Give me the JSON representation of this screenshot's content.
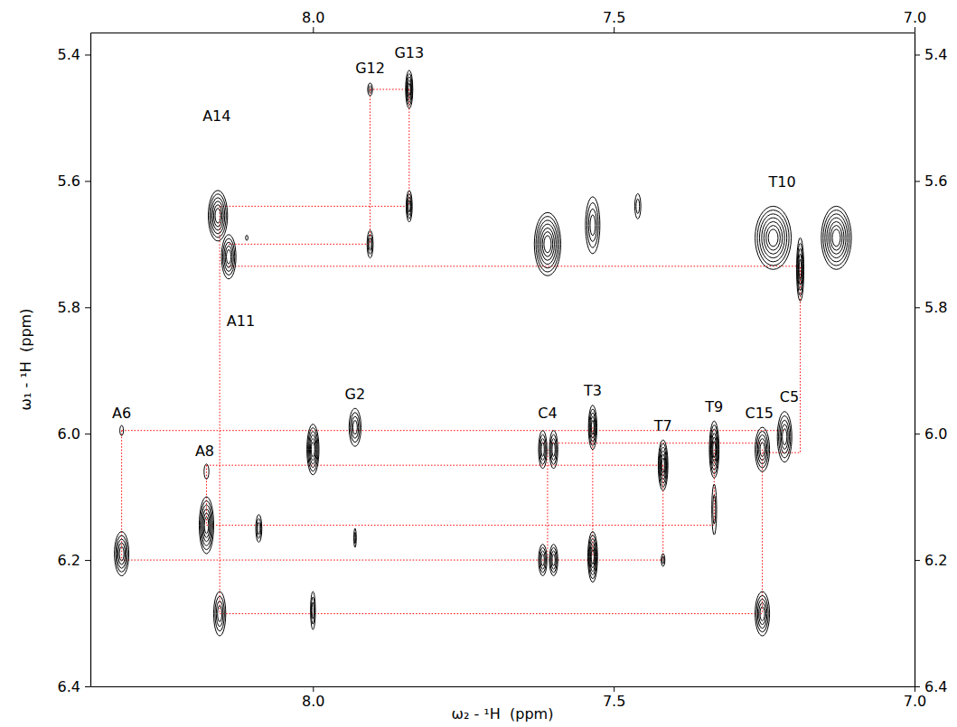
{
  "chart_data": {
    "type": "contour",
    "x_label": "ω₂ - ¹H  (ppm)",
    "y_label": "ω₁ - ¹H  (ppm)",
    "xlim": [
      8.37,
      7.0
    ],
    "ylim": [
      5.365,
      6.4
    ],
    "xticks": [
      {
        "value": 8,
        "label": "8.0"
      },
      7.5,
      {
        "value": 7,
        "label": "7.0"
      }
    ],
    "yticks": [
      5.4,
      5.6,
      5.8,
      {
        "value": 6,
        "label": "6.0"
      },
      6.2,
      6.4
    ],
    "color": "#000000",
    "peaks": [
      {
        "x": 8.318,
        "y": 6.19,
        "xw": 0.012,
        "yw": 0.035,
        "levels": 5
      },
      {
        "x": 8.318,
        "y": 5.995,
        "xw": 0.003,
        "yw": 0.008,
        "levels": 1
      },
      {
        "x": 8.177,
        "y": 6.145,
        "xw": 0.012,
        "yw": 0.045,
        "levels": 6
      },
      {
        "x": 8.177,
        "y": 6.06,
        "xw": 0.004,
        "yw": 0.012,
        "levels": 1
      },
      {
        "x": 8.158,
        "y": 5.655,
        "xw": 0.016,
        "yw": 0.04,
        "levels": 6
      },
      {
        "x": 8.14,
        "y": 5.72,
        "xw": 0.012,
        "yw": 0.035,
        "levels": 5
      },
      {
        "x": 8.155,
        "y": 6.285,
        "xw": 0.01,
        "yw": 0.035,
        "levels": 4
      },
      {
        "x": 8.09,
        "y": 6.15,
        "xw": 0.005,
        "yw": 0.022,
        "levels": 3
      },
      {
        "x": 8.11,
        "y": 5.69,
        "xw": 0.002,
        "yw": 0.004,
        "levels": 1
      },
      {
        "x": 8.0,
        "y": 6.025,
        "xw": 0.01,
        "yw": 0.04,
        "levels": 6
      },
      {
        "x": 8.0,
        "y": 6.28,
        "xw": 0.004,
        "yw": 0.03,
        "levels": 3
      },
      {
        "x": 7.93,
        "y": 5.99,
        "xw": 0.01,
        "yw": 0.03,
        "levels": 4
      },
      {
        "x": 7.93,
        "y": 6.165,
        "xw": 0.002,
        "yw": 0.015,
        "levels": 2
      },
      {
        "x": 7.905,
        "y": 5.455,
        "xw": 0.004,
        "yw": 0.01,
        "levels": 2
      },
      {
        "x": 7.905,
        "y": 5.7,
        "xw": 0.005,
        "yw": 0.022,
        "levels": 3
      },
      {
        "x": 7.84,
        "y": 5.455,
        "xw": 0.006,
        "yw": 0.03,
        "levels": 5
      },
      {
        "x": 7.84,
        "y": 5.64,
        "xw": 0.005,
        "yw": 0.025,
        "levels": 4
      },
      {
        "x": 7.618,
        "y": 6.025,
        "xw": 0.007,
        "yw": 0.03,
        "levels": 4
      },
      {
        "x": 7.6,
        "y": 6.025,
        "xw": 0.007,
        "yw": 0.03,
        "levels": 4
      },
      {
        "x": 7.618,
        "y": 6.2,
        "xw": 0.007,
        "yw": 0.025,
        "levels": 4
      },
      {
        "x": 7.6,
        "y": 6.2,
        "xw": 0.007,
        "yw": 0.025,
        "levels": 4
      },
      {
        "x": 7.61,
        "y": 5.7,
        "xw": 0.022,
        "yw": 0.05,
        "levels": 7
      },
      {
        "x": 7.535,
        "y": 5.67,
        "xw": 0.012,
        "yw": 0.045,
        "levels": 4
      },
      {
        "x": 7.46,
        "y": 5.64,
        "xw": 0.005,
        "yw": 0.02,
        "levels": 2
      },
      {
        "x": 7.535,
        "y": 5.99,
        "xw": 0.007,
        "yw": 0.035,
        "levels": 5
      },
      {
        "x": 7.535,
        "y": 6.195,
        "xw": 0.008,
        "yw": 0.04,
        "levels": 6
      },
      {
        "x": 7.418,
        "y": 6.05,
        "xw": 0.008,
        "yw": 0.04,
        "levels": 6
      },
      {
        "x": 7.418,
        "y": 6.2,
        "xw": 0.003,
        "yw": 0.01,
        "levels": 2
      },
      {
        "x": 7.333,
        "y": 6.025,
        "xw": 0.008,
        "yw": 0.045,
        "levels": 6
      },
      {
        "x": 7.333,
        "y": 6.12,
        "xw": 0.004,
        "yw": 0.04,
        "levels": 2
      },
      {
        "x": 7.253,
        "y": 6.025,
        "xw": 0.012,
        "yw": 0.035,
        "levels": 5
      },
      {
        "x": 7.253,
        "y": 6.285,
        "xw": 0.012,
        "yw": 0.035,
        "levels": 5
      },
      {
        "x": 7.216,
        "y": 6.005,
        "xw": 0.012,
        "yw": 0.04,
        "levels": 5
      },
      {
        "x": 7.235,
        "y": 5.69,
        "xw": 0.03,
        "yw": 0.05,
        "levels": 7
      },
      {
        "x": 7.19,
        "y": 5.74,
        "xw": 0.006,
        "yw": 0.05,
        "levels": 5
      },
      {
        "x": 7.13,
        "y": 5.69,
        "xw": 0.025,
        "yw": 0.05,
        "levels": 7
      }
    ],
    "connections": {
      "color": "#ff0000",
      "line_style": "dotted",
      "lines": [
        {
          "x": [
            7.905,
            7.84
          ],
          "y": [
            5.455,
            5.455
          ]
        },
        {
          "x": [
            7.905,
            7.905
          ],
          "y": [
            5.455,
            5.7
          ]
        },
        {
          "x": [
            7.84,
            7.84
          ],
          "y": [
            5.455,
            5.64
          ]
        },
        {
          "x": [
            8.155,
            7.84
          ],
          "y": [
            5.64,
            5.64
          ]
        },
        {
          "x": [
            8.14,
            7.905
          ],
          "y": [
            5.7,
            5.7
          ]
        },
        {
          "x": [
            8.14,
            7.19,
            7.19,
            7.253
          ],
          "y": [
            5.735,
            5.735,
            6.03,
            6.03
          ]
        },
        {
          "x": [
            8.318,
            7.216
          ],
          "y": [
            5.995,
            5.995
          ]
        },
        {
          "x": [
            8.318,
            8.318
          ],
          "y": [
            5.995,
            6.2
          ]
        },
        {
          "x": [
            7.618,
            7.253
          ],
          "y": [
            6.015,
            6.015
          ]
        },
        {
          "x": [
            8.177,
            7.418
          ],
          "y": [
            6.05,
            6.05
          ]
        },
        {
          "x": [
            8.177,
            8.177
          ],
          "y": [
            6.05,
            6.145
          ]
        },
        {
          "x": [
            8.177,
            7.333
          ],
          "y": [
            6.145,
            6.145
          ]
        },
        {
          "x": [
            7.333,
            7.333
          ],
          "y": [
            6.025,
            6.145
          ]
        },
        {
          "x": [
            8.318,
            7.418
          ],
          "y": [
            6.2,
            6.2
          ]
        },
        {
          "x": [
            7.61,
            7.61
          ],
          "y": [
            6.025,
            6.2
          ]
        },
        {
          "x": [
            7.535,
            7.535
          ],
          "y": [
            5.99,
            6.195
          ]
        },
        {
          "x": [
            7.418,
            7.418
          ],
          "y": [
            6.05,
            6.2
          ]
        },
        {
          "x": [
            8.155,
            8.155
          ],
          "y": [
            5.64,
            6.285
          ]
        },
        {
          "x": [
            8.155,
            7.253
          ],
          "y": [
            6.285,
            6.285
          ]
        },
        {
          "x": [
            7.253,
            7.253
          ],
          "y": [
            6.025,
            6.285
          ]
        }
      ]
    },
    "annotations": [
      {
        "text": "A14",
        "x": 8.16,
        "y": 5.505
      },
      {
        "text": "A11",
        "x": 8.12,
        "y": 5.83
      },
      {
        "text": "G12",
        "x": 7.905,
        "y": 5.43
      },
      {
        "text": "G13",
        "x": 7.84,
        "y": 5.405
      },
      {
        "text": "T10",
        "x": 7.22,
        "y": 5.61
      },
      {
        "text": "A6",
        "x": 8.318,
        "y": 5.975
      },
      {
        "text": "A8",
        "x": 8.18,
        "y": 6.035
      },
      {
        "text": "G2",
        "x": 7.93,
        "y": 5.945
      },
      {
        "text": "C4",
        "x": 7.61,
        "y": 5.975
      },
      {
        "text": "T3",
        "x": 7.535,
        "y": 5.94
      },
      {
        "text": "T7",
        "x": 7.418,
        "y": 5.995
      },
      {
        "text": "T9",
        "x": 7.333,
        "y": 5.965
      },
      {
        "text": "C15",
        "x": 7.258,
        "y": 5.975
      },
      {
        "text": "C5",
        "x": 7.208,
        "y": 5.95
      }
    ]
  }
}
